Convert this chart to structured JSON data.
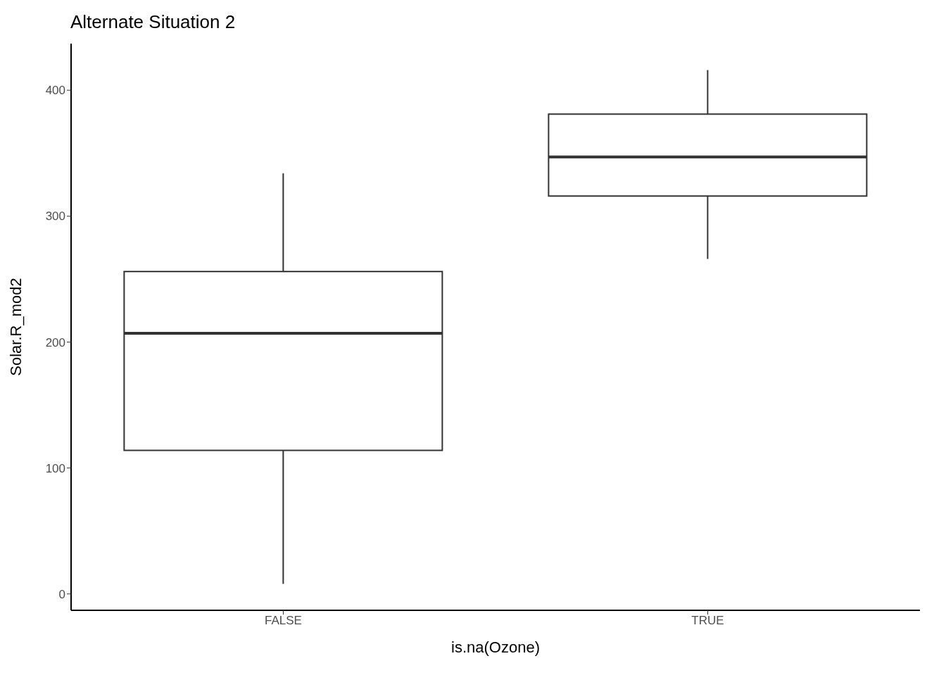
{
  "chart_data": {
    "type": "box",
    "title": "Alternate Situation 2",
    "xlabel": "is.na(Ozone)",
    "ylabel": "Solar.R_mod2",
    "categories": [
      "FALSE",
      "TRUE"
    ],
    "boxes": [
      {
        "low": 8,
        "q1": 114,
        "median": 207,
        "q3": 256,
        "high": 334
      },
      {
        "low": 266,
        "q1": 316,
        "median": 347,
        "q3": 381,
        "high": 416
      }
    ],
    "ylim": [
      -13,
      437
    ],
    "yticks": [
      0,
      100,
      200,
      300,
      400
    ],
    "grid": false
  }
}
